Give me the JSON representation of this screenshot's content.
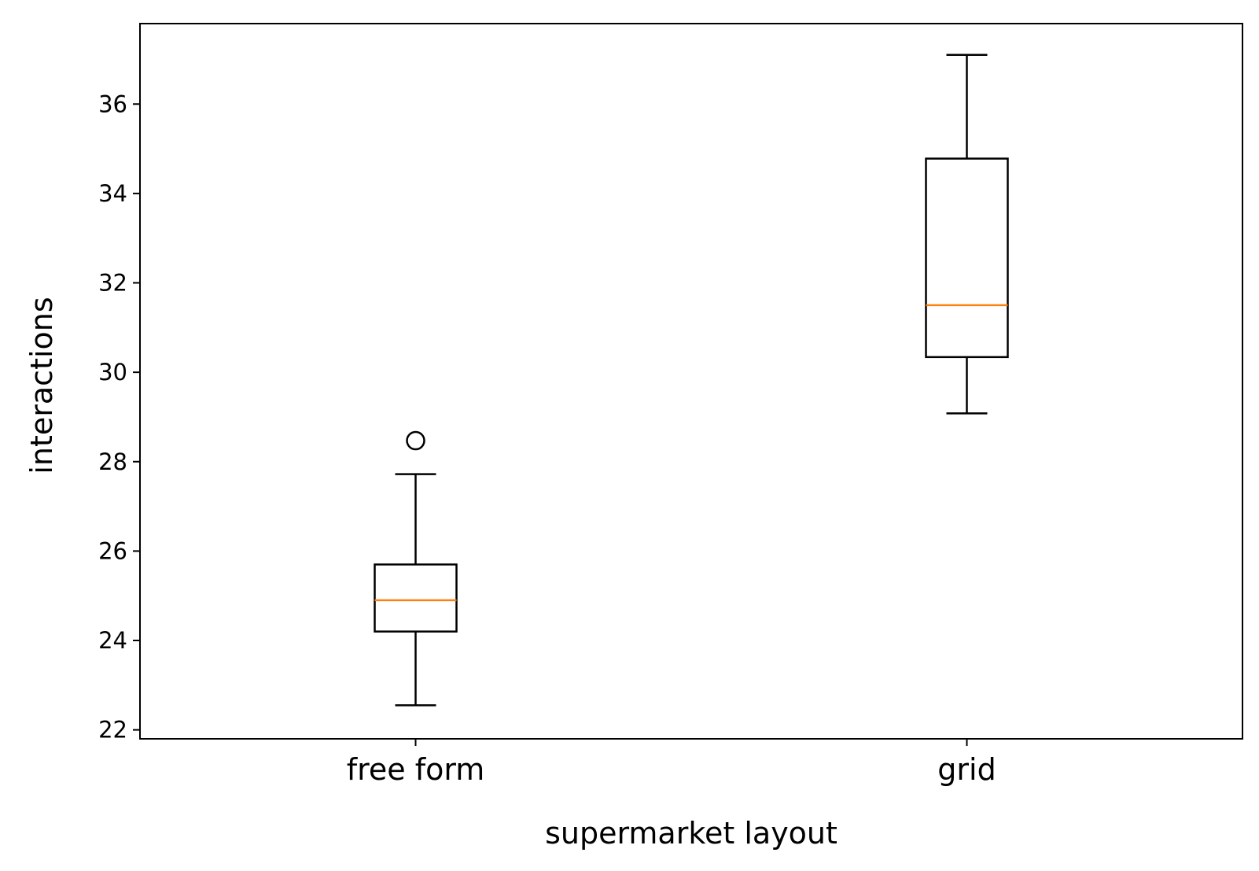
{
  "chart_data": {
    "type": "box",
    "title": "",
    "xlabel": "supermarket layout",
    "ylabel": "interactions",
    "categories": [
      "free form",
      "grid"
    ],
    "boxes": [
      {
        "category": "free form",
        "whisker_low": 22.55,
        "q1": 24.2,
        "median": 24.9,
        "q3": 25.7,
        "whisker_high": 27.72,
        "outliers": [
          28.47
        ]
      },
      {
        "category": "grid",
        "whisker_low": 29.08,
        "q1": 30.34,
        "median": 31.5,
        "q3": 34.78,
        "whisker_high": 37.1,
        "outliers": []
      }
    ],
    "ylim": [
      21.8,
      37.8
    ],
    "yticks": [
      22,
      24,
      26,
      28,
      30,
      32,
      34,
      36
    ],
    "grid": false,
    "colors": {
      "box": "#000000",
      "median": "#ff7f0e",
      "outlier": "#000000"
    }
  }
}
